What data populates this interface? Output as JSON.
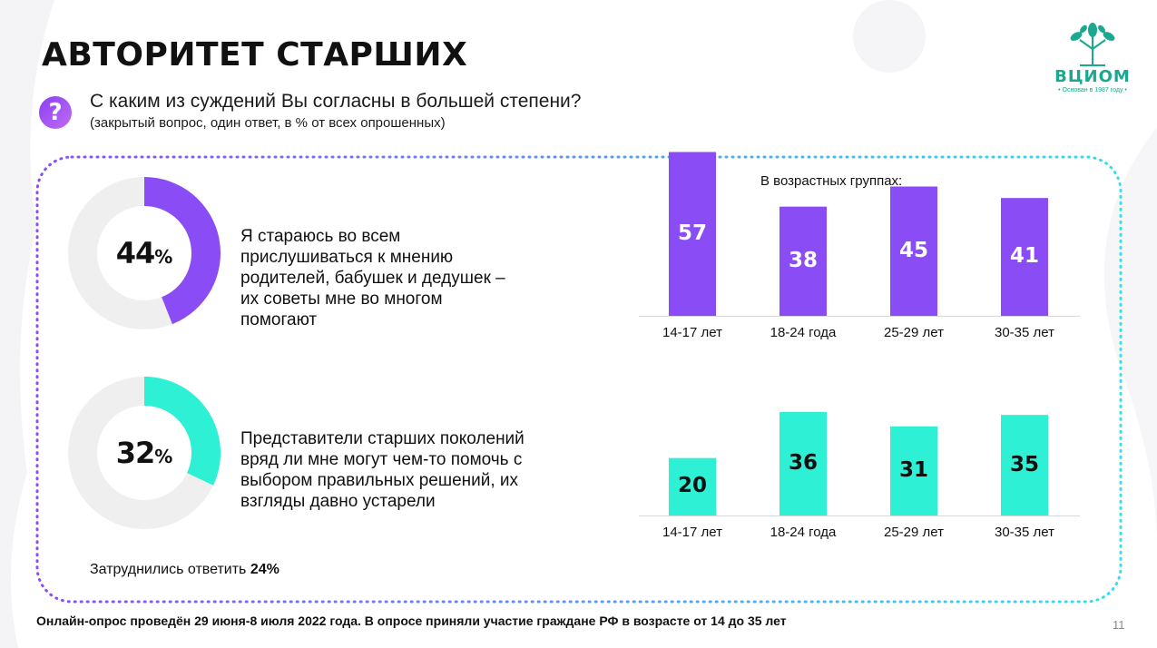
{
  "title": "АВТОРИТЕТ СТАРШИХ",
  "question": {
    "icon": "question-icon",
    "text": "С каким из суждений Вы согласны в большей степени?",
    "note": "(закрытый вопрос, один ответ, в % от всех опрошенных)"
  },
  "logo": {
    "name": "ВЦИОМ",
    "tagline": "• Основан в 1987 году •",
    "icon": "tree-logo-icon"
  },
  "colors": {
    "purple": "#8a4cf5",
    "teal": "#2ef0d4",
    "track": "#efefef"
  },
  "chart_data": [
    {
      "type": "pie",
      "value": 44,
      "value_label": "44",
      "unit": "%",
      "label": "Я стараюсь во всем прислушиваться к мнению родителей, бабушек и дедушек – их советы мне во многом помогают",
      "color": "#8a4cf5"
    },
    {
      "type": "pie",
      "value": 32,
      "value_label": "32",
      "unit": "%",
      "label": "Представители старших поколений вряд ли мне могут чем-то помочь с выбором правильных решений, их взгляды давно устарели",
      "color": "#2ef0d4"
    },
    {
      "type": "bar",
      "title": "В возрастных группах:",
      "categories": [
        "14-17 лет",
        "18-24 года",
        "25-29 лет",
        "30-35 лет"
      ],
      "values": [
        57,
        38,
        45,
        41
      ],
      "ylim": [
        0,
        60
      ],
      "color": "#8a4cf5"
    },
    {
      "type": "bar",
      "title": "",
      "categories": [
        "14-17 лет",
        "18-24 года",
        "25-29 лет",
        "30-35 лет"
      ],
      "values": [
        20,
        36,
        31,
        35
      ],
      "ylim": [
        0,
        60
      ],
      "color": "#2ef0d4"
    }
  ],
  "difficult": {
    "label": "Затруднились ответить",
    "value": "24%"
  },
  "footer": "Онлайн-опрос проведён 29 июня-8 июля 2022 года. В опросе приняли участие граждане РФ в возрасте от 14 до 35 лет",
  "page_number": "11"
}
